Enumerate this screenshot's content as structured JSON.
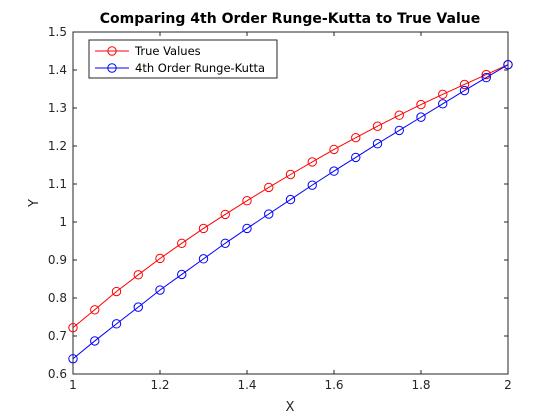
{
  "chart_data": {
    "type": "line",
    "title": "Comparing 4th Order Runge-Kutta to True Value",
    "xlabel": "X",
    "ylabel": "Y",
    "xlim": [
      1,
      2
    ],
    "ylim": [
      0.6,
      1.5
    ],
    "xticks": [
      1,
      1.2,
      1.4,
      1.6,
      1.8,
      2
    ],
    "xtick_labels": [
      "1",
      "1.2",
      "1.4",
      "1.6",
      "1.8",
      "2"
    ],
    "yticks": [
      0.6,
      0.7,
      0.8,
      0.9,
      1.0,
      1.1,
      1.2,
      1.3,
      1.4,
      1.5
    ],
    "ytick_labels": [
      "0.6",
      "0.7",
      "0.8",
      "0.9",
      "1",
      "1.1",
      "1.2",
      "1.3",
      "1.4",
      "1.5"
    ],
    "grid": false,
    "legend_position": "top-left",
    "x": [
      1.0,
      1.05,
      1.1,
      1.15,
      1.2,
      1.25,
      1.3,
      1.35,
      1.4,
      1.45,
      1.5,
      1.55,
      1.6,
      1.65,
      1.7,
      1.75,
      1.8,
      1.85,
      1.9,
      1.95,
      2.0
    ],
    "series": [
      {
        "name": "True Values",
        "color": "#ff0000",
        "marker": "circle",
        "values": [
          0.722,
          0.769,
          0.817,
          0.861,
          0.904,
          0.944,
          0.983,
          1.02,
          1.056,
          1.091,
          1.125,
          1.158,
          1.191,
          1.222,
          1.252,
          1.281,
          1.309,
          1.336,
          1.362,
          1.388,
          1.414
        ]
      },
      {
        "name": "4th Order Runge-Kutta",
        "color": "#0000ff",
        "marker": "circle",
        "values": [
          0.64,
          0.687,
          0.732,
          0.776,
          0.821,
          0.862,
          0.903,
          0.944,
          0.983,
          1.021,
          1.059,
          1.097,
          1.134,
          1.17,
          1.206,
          1.241,
          1.276,
          1.311,
          1.346,
          1.38,
          1.414
        ]
      }
    ]
  }
}
